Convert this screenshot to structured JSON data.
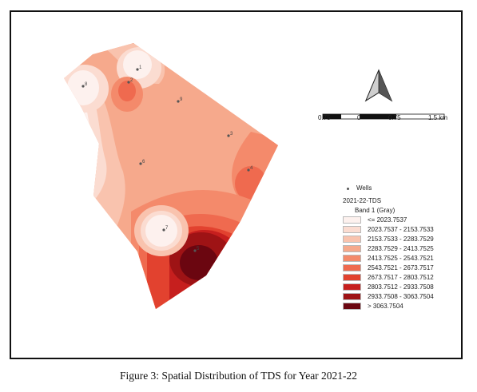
{
  "caption": "Figure 3: Spatial Distribution of TDS for Year 2021-22",
  "wells": [
    {
      "label": "1"
    },
    {
      "label": "2"
    },
    {
      "label": "3"
    },
    {
      "label": "4"
    },
    {
      "label": "6"
    },
    {
      "label": "7"
    },
    {
      "label": "8"
    },
    {
      "label": "9"
    },
    {
      "label": "5"
    }
  ],
  "legend": {
    "wells_title": "Wells",
    "layer_title": "2021-22-TDS",
    "band": "Band 1 (Gray)",
    "classes": [
      {
        "label": "<= 2023.7537",
        "color": "#fdf1ee"
      },
      {
        "label": "2023.7537 - 2153.7533",
        "color": "#fbdcd1"
      },
      {
        "label": "2153.7533 - 2283.7529",
        "color": "#f9c3ae"
      },
      {
        "label": "2283.7529 - 2413.7525",
        "color": "#f6a98c"
      },
      {
        "label": "2413.7525 - 2543.7521",
        "color": "#f48a6b"
      },
      {
        "label": "2543.7521 - 2673.7517",
        "color": "#ef6a4f"
      },
      {
        "label": "2673.7517 - 2803.7512",
        "color": "#e2422f"
      },
      {
        "label": "2803.7512 - 2933.7508",
        "color": "#c61f1e"
      },
      {
        "label": "2933.7508 - 3063.7504",
        "color": "#9e1315"
      },
      {
        "label": "> 3063.7504",
        "color": "#6b0610"
      }
    ]
  },
  "scalebar": {
    "ticks": [
      "0.75",
      "0",
      "0.75",
      "1.5 km"
    ]
  },
  "north_arrow": "north-arrow-icon"
}
